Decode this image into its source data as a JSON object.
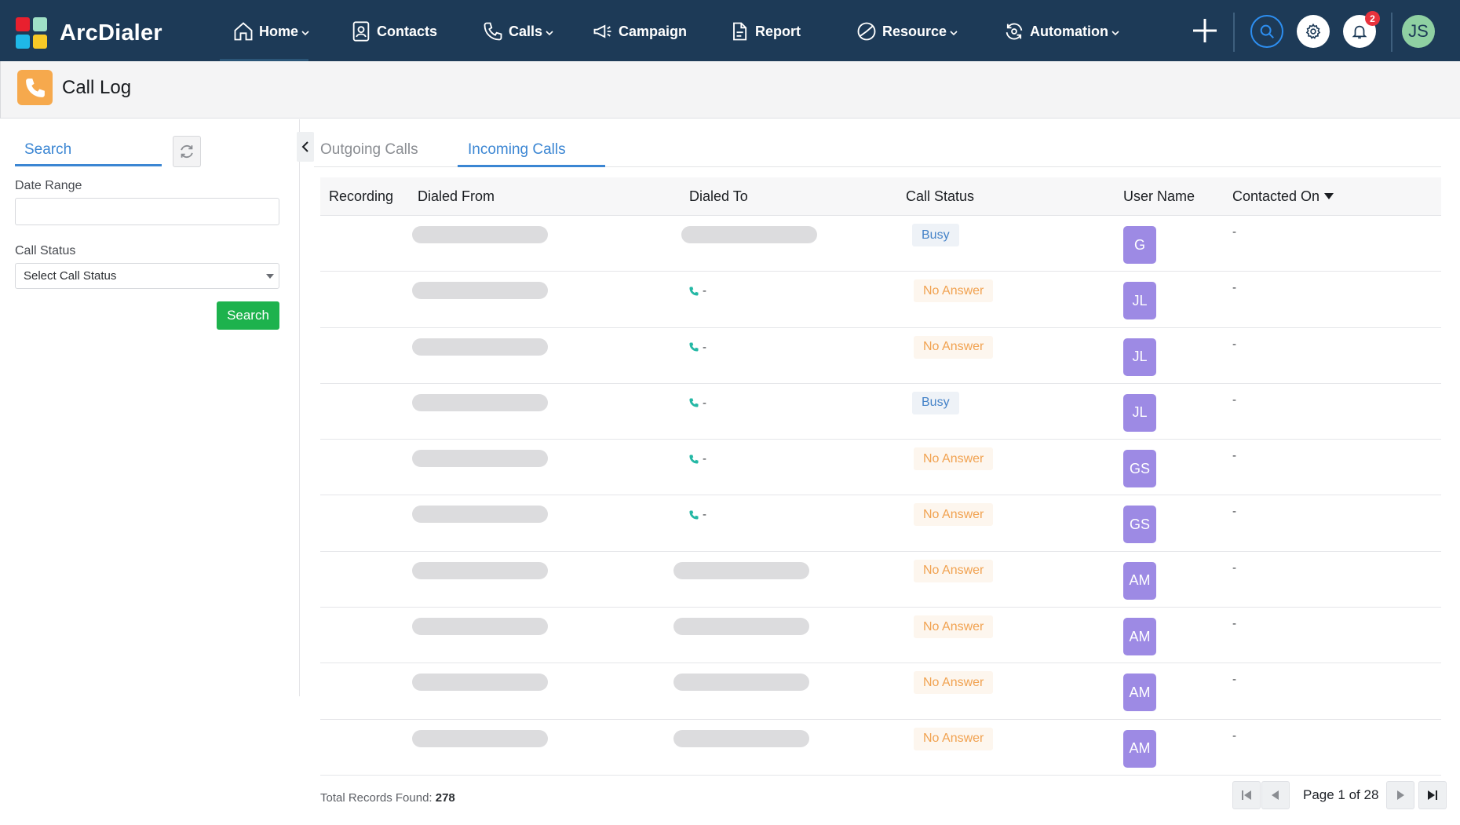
{
  "app": {
    "name": "ArcDialer",
    "logo_colors": [
      "#e8202e",
      "#9fe0c6",
      "#1fb8e8",
      "#f7c927"
    ]
  },
  "nav": {
    "items": [
      {
        "label": "Home",
        "icon": "home-icon",
        "has_dropdown": true
      },
      {
        "label": "Contacts",
        "icon": "contacts-icon",
        "has_dropdown": false
      },
      {
        "label": "Calls",
        "icon": "phone-icon",
        "has_dropdown": true
      },
      {
        "label": "Campaign",
        "icon": "megaphone-icon",
        "has_dropdown": false
      },
      {
        "label": "Report",
        "icon": "report-icon",
        "has_dropdown": false
      },
      {
        "label": "Resource",
        "icon": "resource-icon",
        "has_dropdown": true
      },
      {
        "label": "Automation",
        "icon": "automation-icon",
        "has_dropdown": true
      }
    ],
    "notification_count": "2",
    "user_initials": "JS"
  },
  "page": {
    "title": "Call Log",
    "icon": "phone-icon",
    "accent_color": "#f6a94d"
  },
  "filters": {
    "search_tab_label": "Search",
    "date_range_label": "Date Range",
    "date_range_value": "",
    "call_status_label": "Call Status",
    "call_status_placeholder": "Select Call Status",
    "search_button_label": "Search",
    "search_button_color": "#1db24d"
  },
  "tabs": {
    "outgoing_label": "Outgoing Calls",
    "incoming_label": "Incoming Calls",
    "active": "incoming"
  },
  "table": {
    "columns": [
      "Recording",
      "Dialed From",
      "Dialed To",
      "Call Status",
      "User Name",
      "Contacted On"
    ],
    "sort_column": "Contacted On",
    "sort_direction": "desc",
    "rows": [
      {
        "dialed_to": "",
        "status": "Busy",
        "user": "G",
        "contacted_on": "-"
      },
      {
        "dialed_to": "-",
        "status": "No Answer",
        "user": "JL",
        "contacted_on": "-"
      },
      {
        "dialed_to": "-",
        "status": "No Answer",
        "user": "JL",
        "contacted_on": "-"
      },
      {
        "dialed_to": "-",
        "status": "Busy",
        "user": "JL",
        "contacted_on": "-"
      },
      {
        "dialed_to": "-",
        "status": "No Answer",
        "user": "GS",
        "contacted_on": "-"
      },
      {
        "dialed_to": "-",
        "status": "No Answer",
        "user": "GS",
        "contacted_on": "-"
      },
      {
        "dialed_to": "",
        "status": "No Answer",
        "user": "AM",
        "contacted_on": "-"
      },
      {
        "dialed_to": "",
        "status": "No Answer",
        "user": "AM",
        "contacted_on": "-"
      },
      {
        "dialed_to": "",
        "status": "No Answer",
        "user": "AM",
        "contacted_on": "-"
      },
      {
        "dialed_to": "",
        "status": "No Answer",
        "user": "AM",
        "contacted_on": "-"
      }
    ]
  },
  "footer": {
    "total_label": "Total Records Found:",
    "total_value": "278",
    "page_text": "Page 1 of 28"
  }
}
